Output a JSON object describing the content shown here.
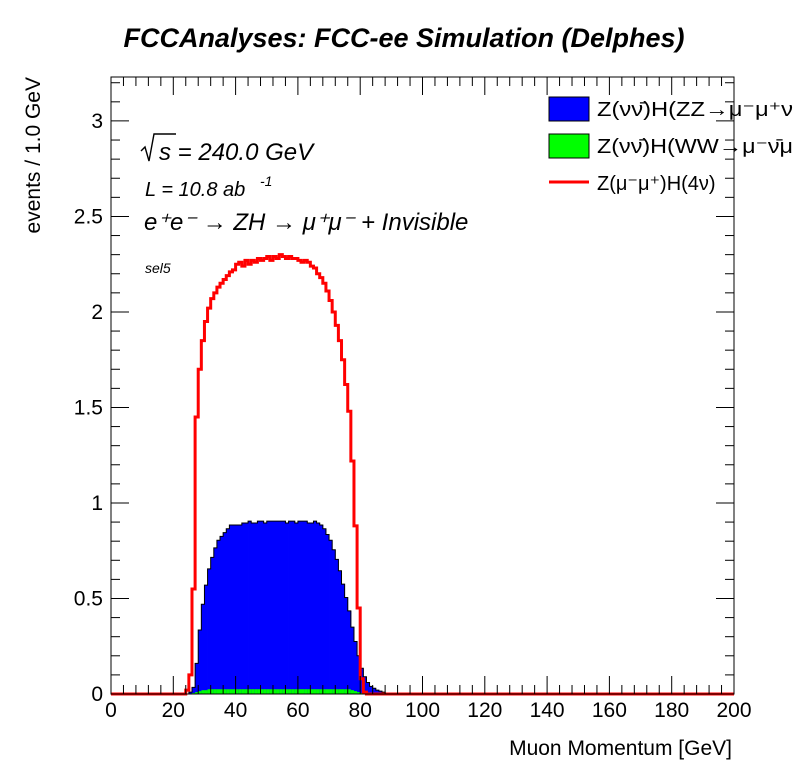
{
  "chart_data": {
    "type": "histogram",
    "title": "FCCAnalyses: FCC-ee Simulation (Delphes)",
    "xlabel": "Muon Momentum [GeV]",
    "ylabel": "events / 1.0 GeV",
    "xlim": [
      0,
      200
    ],
    "ylim": [
      0,
      3.23
    ],
    "x_ticks": [
      0,
      20,
      40,
      60,
      80,
      100,
      120,
      140,
      160,
      180,
      200
    ],
    "y_ticks": [
      0,
      0.5,
      1,
      1.5,
      2,
      2.5,
      3
    ],
    "bin_width": 1.0,
    "grid": false,
    "legend_position": "top-right",
    "annotations": {
      "sqrt_s": "s = 240.0 GeV",
      "lumi_main": "L = 10.8 ab",
      "lumi_exp": "-1",
      "process": "e⁺e⁻ → ZH → μ⁺μ⁻ + Invisible",
      "selection": "sel5"
    },
    "series": [
      {
        "name": "Z(νν̄)H(ZZ→μ⁻μ⁺ν",
        "style": "filled-stack",
        "color": "#0000ff",
        "x_start": 20,
        "values": [
          0,
          0,
          0,
          0,
          0,
          0.01,
          0.03,
          0.15,
          0.32,
          0.45,
          0.55,
          0.63,
          0.69,
          0.74,
          0.78,
          0.8,
          0.82,
          0.84,
          0.86,
          0.86,
          0.86,
          0.86,
          0.87,
          0.87,
          0.88,
          0.87,
          0.87,
          0.88,
          0.88,
          0.87,
          0.88,
          0.88,
          0.88,
          0.88,
          0.88,
          0.88,
          0.87,
          0.88,
          0.88,
          0.87,
          0.88,
          0.88,
          0.88,
          0.87,
          0.87,
          0.88,
          0.87,
          0.86,
          0.84,
          0.81,
          0.78,
          0.73,
          0.68,
          0.62,
          0.55,
          0.48,
          0.41,
          0.33,
          0.26,
          0.19,
          0.13,
          0.09,
          0.06,
          0.04,
          0.03,
          0.02,
          0.015,
          0.01,
          0.005,
          0.003,
          0
        ]
      },
      {
        "name": "Z(νν̄)H(WW→μ⁻ν̄μ",
        "style": "filled-stack",
        "color": "#00ff00",
        "x_start": 20,
        "values": [
          0,
          0,
          0,
          0,
          0,
          0,
          0.005,
          0.01,
          0.015,
          0.02,
          0.02,
          0.025,
          0.025,
          0.025,
          0.025,
          0.025,
          0.025,
          0.025,
          0.025,
          0.025,
          0.025,
          0.025,
          0.025,
          0.025,
          0.025,
          0.025,
          0.025,
          0.025,
          0.025,
          0.025,
          0.025,
          0.025,
          0.025,
          0.025,
          0.025,
          0.025,
          0.025,
          0.025,
          0.025,
          0.025,
          0.025,
          0.025,
          0.025,
          0.025,
          0.025,
          0.025,
          0.025,
          0.025,
          0.025,
          0.025,
          0.025,
          0.025,
          0.025,
          0.025,
          0.025,
          0.025,
          0.025,
          0.02,
          0.015,
          0.01,
          0.005,
          0,
          0,
          0,
          0,
          0,
          0,
          0,
          0,
          0,
          0
        ]
      },
      {
        "name": "Z(μ⁻μ⁺)H(4ν)",
        "style": "line",
        "color": "#ff0000",
        "x_start": 20,
        "values": [
          0,
          0,
          0,
          0,
          0.02,
          0.1,
          0.55,
          1.45,
          1.7,
          1.85,
          1.95,
          2.02,
          2.07,
          2.1,
          2.13,
          2.15,
          2.17,
          2.19,
          2.21,
          2.22,
          2.25,
          2.26,
          2.24,
          2.27,
          2.25,
          2.27,
          2.26,
          2.28,
          2.27,
          2.28,
          2.29,
          2.27,
          2.29,
          2.28,
          2.3,
          2.29,
          2.28,
          2.29,
          2.28,
          2.28,
          2.27,
          2.26,
          2.27,
          2.26,
          2.24,
          2.23,
          2.2,
          2.18,
          2.15,
          2.11,
          2.06,
          2.0,
          1.93,
          1.85,
          1.75,
          1.62,
          1.48,
          1.22,
          0.88,
          0.45,
          0.08,
          0.01,
          0,
          0,
          0,
          0,
          0,
          0,
          0,
          0,
          0
        ]
      }
    ]
  }
}
